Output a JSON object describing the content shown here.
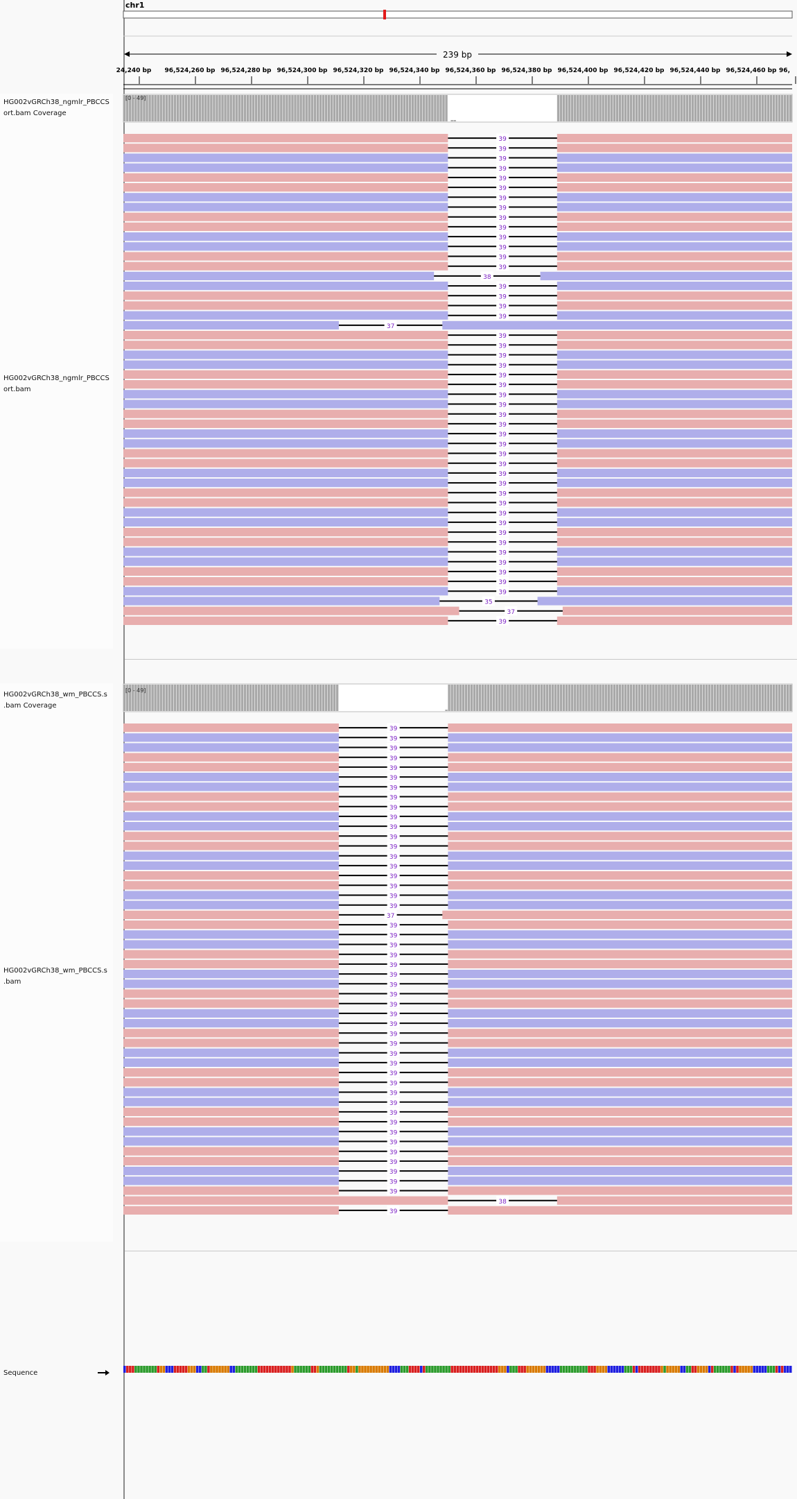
{
  "header": {
    "chromosome": "chr1",
    "span_label": "239 bp",
    "ruler_ticks": [
      "24,240 bp",
      "96,524,260 bp",
      "96,524,280 bp",
      "96,524,300 bp",
      "96,524,320 bp",
      "96,524,340 bp",
      "96,524,360 bp",
      "96,524,380 bp",
      "96,524,400 bp",
      "96,524,420 bp",
      "96,524,440 bp",
      "96,524,460 bp",
      "96,"
    ]
  },
  "tracks": {
    "ngmlr_coverage": {
      "name_line1": "HG002vGRCh38_ngmlr_PBCCS",
      "name_line2": "ort.bam Coverage",
      "range": "[0 - 49]"
    },
    "ngmlr_alignment": {
      "name_line1": "HG002vGRCh38_ngmlr_PBCCS",
      "name_line2": "ort.bam"
    },
    "wm_coverage": {
      "name_line1": "HG002vGRCh38_wm_PBCCS.s",
      "name_line2": ".bam Coverage",
      "range": "[0 - 49]"
    },
    "wm_alignment": {
      "name_line1": "HG002vGRCh38_wm_PBCCS.s",
      "name_line2": ".bam"
    },
    "sequence": {
      "name": "Sequence"
    }
  },
  "colors": {
    "forward_read": "#e8aeae",
    "reverse_read": "#afaeea",
    "deletion_label": "#7b1fc4",
    "coverage_bar": "#a9a9a9",
    "locator": "#e21a1a"
  },
  "ngmlr_reads": {
    "default_del_start": 96524339,
    "default_del_end": 96524378,
    "deletion_lengths": [
      39,
      39,
      39,
      39,
      39,
      39,
      39,
      39,
      39,
      39,
      39,
      39,
      39,
      39,
      38,
      39,
      39,
      39,
      39,
      37,
      39,
      39,
      39,
      39,
      39,
      39,
      39,
      39,
      39,
      39,
      39,
      39,
      39,
      39,
      39,
      39,
      39,
      39,
      39,
      39,
      39,
      39,
      39,
      39,
      39,
      39,
      39,
      35,
      37,
      39
    ],
    "strands": [
      "F",
      "F",
      "R",
      "R",
      "F",
      "F",
      "R",
      "R",
      "F",
      "F",
      "R",
      "R",
      "F",
      "F",
      "R",
      "R",
      "F",
      "F",
      "R",
      "R",
      "F",
      "F",
      "R",
      "R",
      "F",
      "F",
      "R",
      "R",
      "F",
      "F",
      "R",
      "R",
      "F",
      "F",
      "R",
      "R",
      "F",
      "F",
      "R",
      "R",
      "F",
      "F",
      "R",
      "R",
      "F",
      "F",
      "R",
      "R",
      "F",
      "F"
    ]
  },
  "wm_reads": {
    "default_del_start": 96524300,
    "default_del_end": 96524339,
    "deletion_lengths": [
      39,
      39,
      39,
      39,
      39,
      39,
      39,
      39,
      39,
      39,
      39,
      39,
      39,
      39,
      39,
      39,
      39,
      39,
      39,
      37,
      39,
      39,
      39,
      39,
      39,
      39,
      39,
      39,
      39,
      39,
      39,
      39,
      39,
      39,
      39,
      39,
      39,
      39,
      39,
      39,
      39,
      39,
      39,
      39,
      39,
      39,
      39,
      39,
      38,
      39
    ],
    "strands": [
      "F",
      "R",
      "R",
      "F",
      "F",
      "R",
      "R",
      "F",
      "F",
      "R",
      "R",
      "F",
      "F",
      "R",
      "R",
      "F",
      "F",
      "R",
      "R",
      "F",
      "F",
      "R",
      "R",
      "F",
      "F",
      "R",
      "R",
      "F",
      "F",
      "R",
      "R",
      "F",
      "F",
      "R",
      "R",
      "F",
      "F",
      "R",
      "R",
      "F",
      "F",
      "R",
      "R",
      "F",
      "F",
      "R",
      "R",
      "F",
      "F",
      "F"
    ]
  }
}
